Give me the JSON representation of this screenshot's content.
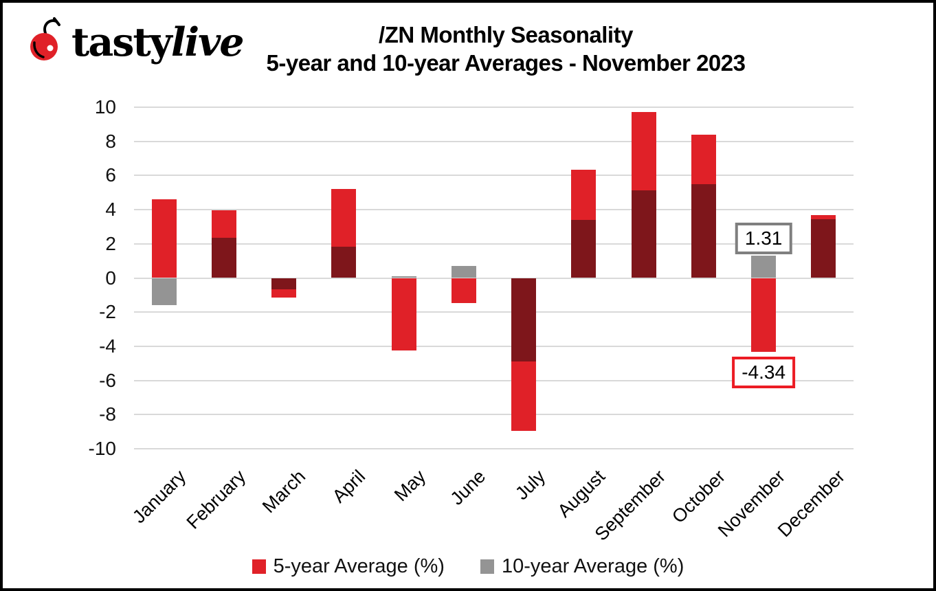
{
  "logo": {
    "brand_bold": "tasty",
    "brand_italic": "live",
    "cherry_color": "#E02128"
  },
  "title": {
    "line1": "/ZN Monthly Seasonality",
    "line2": "5-year and 10-year Averages - November 2023"
  },
  "chart_data": {
    "type": "bar",
    "title": "/ZN Monthly Seasonality 5-year and 10-year Averages - November 2023",
    "categories": [
      "January",
      "February",
      "March",
      "April",
      "May",
      "June",
      "July",
      "August",
      "September",
      "October",
      "November",
      "December"
    ],
    "series": [
      {
        "name": "5-year Average (%)",
        "color": "#E02128",
        "values": [
          4.6,
          3.95,
          -1.15,
          5.2,
          -4.25,
          -1.45,
          -8.95,
          6.35,
          9.7,
          8.4,
          -4.34,
          3.7
        ]
      },
      {
        "name": "10-year Average (%)",
        "color": "#949494",
        "values": [
          -1.6,
          2.35,
          -0.65,
          1.85,
          0.1,
          0.7,
          -4.9,
          3.4,
          5.15,
          5.5,
          1.31,
          3.45
        ]
      }
    ],
    "overlap_color": "#7E161B",
    "ylim": [
      -10,
      10
    ],
    "ytick_step": 2,
    "grid": true,
    "gridline_color": "#D9D9D9",
    "legend_position": "bottom",
    "annotations": [
      {
        "category": "November",
        "series": "10-year Average (%)",
        "text": "1.31",
        "border_color": "#7F7F7F",
        "position": "above"
      },
      {
        "category": "November",
        "series": "5-year Average (%)",
        "text": "-4.34",
        "border_color": "#EC1C24",
        "position": "below"
      }
    ]
  },
  "legend": {
    "items": [
      {
        "label": "5-year Average (%)",
        "color": "#E02128"
      },
      {
        "label": "10-year Average (%)",
        "color": "#949494"
      }
    ]
  }
}
